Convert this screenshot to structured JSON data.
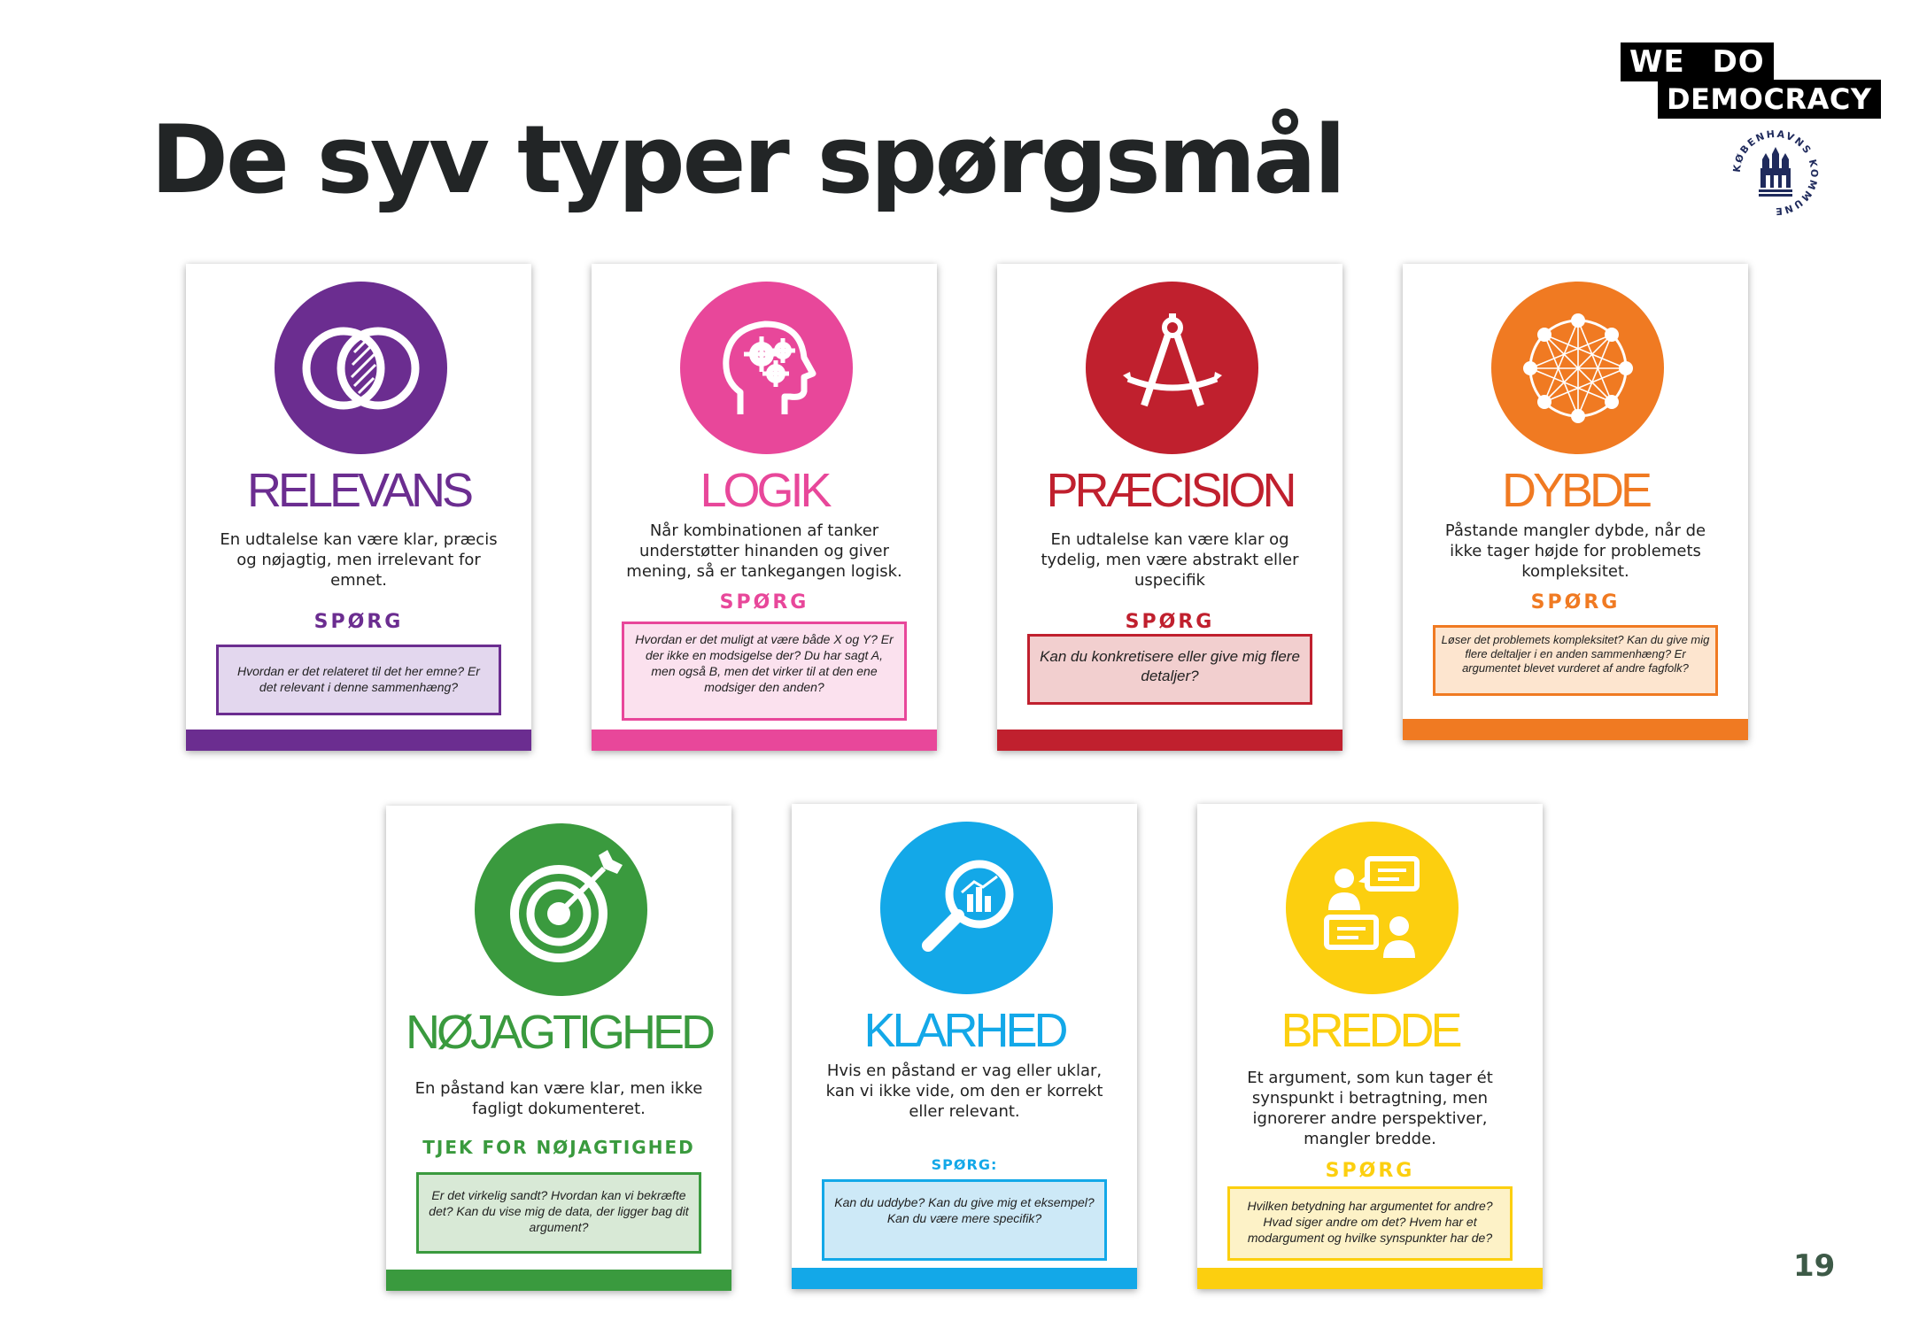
{
  "page": {
    "title": "De syv typer spørgsmål",
    "page_number": "19",
    "brand": {
      "line1": "WE DO",
      "line2": "DEMOCRACY"
    },
    "seal_text": "KØBENHAVNS KOMMUNE"
  },
  "colors": {
    "relevans": "#6b2d90",
    "logik": "#e8479a",
    "praecision": "#c0202e",
    "dybde": "#f07a22",
    "noejagtighed": "#3a9a3e",
    "klarhed": "#13a8e8",
    "bredde": "#fccf0f"
  },
  "cards": [
    {
      "id": "relevans",
      "icon": "venn-diagram-icon",
      "name": "RELEVANS",
      "description": "En udtalelse kan være klar, præcis og nøjagtig, men irrelevant for emnet.",
      "ask_label": "SPØRG",
      "questions": "Hvordan er det relateret til det her emne? Er det relevant i denne sammenhæng?"
    },
    {
      "id": "logik",
      "icon": "head-gears-icon",
      "name": "LOGIK",
      "description": "Når kombinationen af tanker understøtter hinanden og giver mening, så er tankegangen logisk.",
      "ask_label": "SPØRG",
      "questions": "Hvordan er det muligt at være både X og Y? Er der ikke en modsigelse der? Du har sagt A, men også B, men det virker til at den ene modsiger den anden?"
    },
    {
      "id": "praecision",
      "icon": "compass-icon",
      "name": "PRÆCISION",
      "description": "En udtalelse kan være klar og tydelig, men være abstrakt eller uspecifik",
      "ask_label": "SPØRG",
      "questions": "Kan du konkretisere eller give mig flere detaljer?"
    },
    {
      "id": "dybde",
      "icon": "network-icon",
      "name": "DYBDE",
      "description": "Påstande mangler dybde, når de ikke tager højde for problemets kompleksitet.",
      "ask_label": "SPØRG",
      "questions": "Løser det problemets kompleksitet? Kan du give mig flere deltaljer i en anden sammenhæng? Er argumentet blevet vurderet af andre fagfolk?"
    },
    {
      "id": "noejagtighed",
      "icon": "target-arrow-icon",
      "name": "NØJAGTIGHED",
      "description": "En påstand kan være klar, men ikke fagligt dokumenteret.",
      "ask_label": "TJEK FOR NØJAGTIGHED",
      "questions": "Er det virkelig sandt? Hvordan kan vi bekræfte det? Kan du vise mig de data, der ligger bag dit argument?"
    },
    {
      "id": "klarhed",
      "icon": "magnifier-chart-icon",
      "name": "KLARHED",
      "description": "Hvis en påstand er vag eller uklar, kan vi ikke vide, om den er korrekt eller relevant.",
      "ask_label": "SPØRG:",
      "questions": "Kan du uddybe? Kan du give mig et eksempel? Kan du være mere specifik?"
    },
    {
      "id": "bredde",
      "icon": "conversation-icon",
      "name": "BREDDE",
      "description": "Et argument, som kun tager ét synspunkt i betragtning, men ignorerer andre perspektiver, mangler bredde.",
      "ask_label": "SPØRG",
      "questions": "Hvilken betydning har argumentet for andre? Hvad siger andre om det? Hvem har et modargument og hvilke synspunkter har de?"
    }
  ]
}
